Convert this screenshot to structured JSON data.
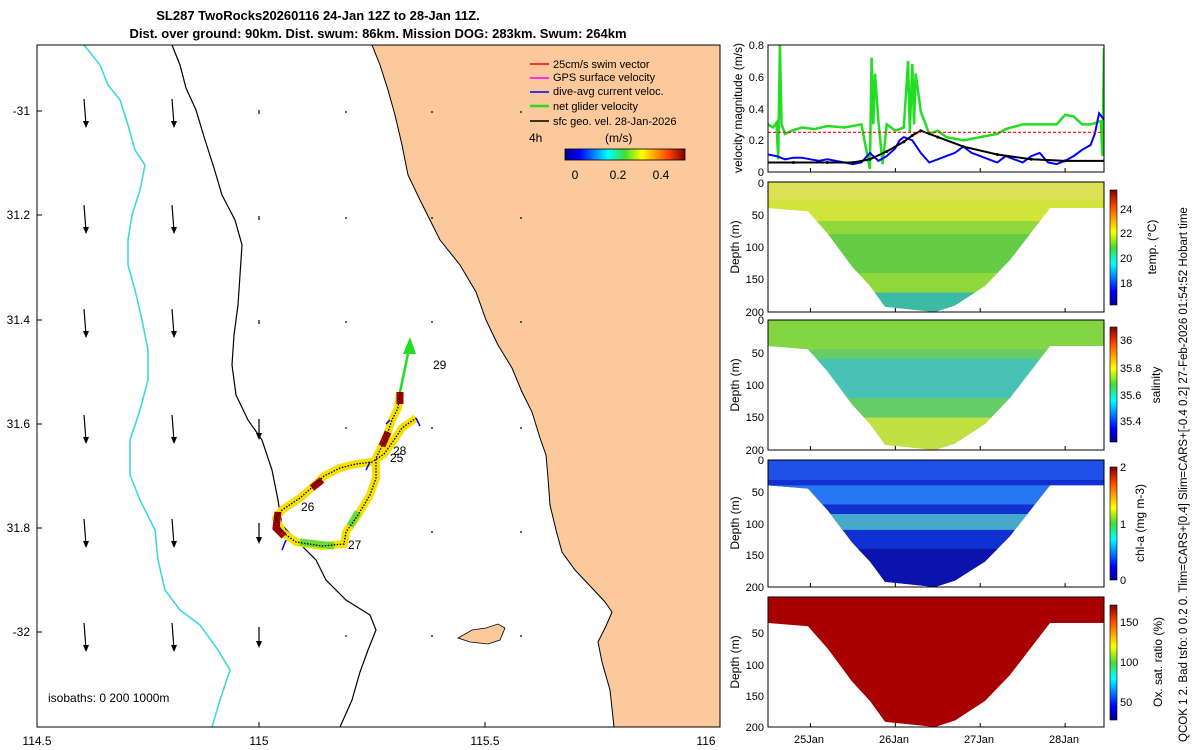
{
  "header": {
    "title_line1": "SL287 TwoRocks20260116 24-Jan 12Z to 28-Jan 11Z.",
    "title_line2": "Dist. over ground: 90km. Dist. swum: 86km. Mission DOG: 283km. Swum: 264km"
  },
  "side_text": "QCOK 1  2. Bad tsfo: 0  0.2  0. Tlim=CARS+[0.4] Slim=CARS+[-0.4 0.2] 27-Feb-2026 01:54:52 Hobart time",
  "colors": {
    "land": "#fbc99b",
    "isobath_0": "#000000",
    "isobath_200": "#000000",
    "isobath_1000": "#40d8e0",
    "swim_vector": "#ff0000",
    "gps_velocity": "#ff00ff",
    "dive_current": "#0000ff",
    "net_glider": "#22dd22",
    "sfc_geo": "#000000"
  },
  "map": {
    "lon_ticks": [
      "114.5",
      "115",
      "115.5",
      "116"
    ],
    "lat_ticks": [
      "-31",
      "31.2",
      "31.4",
      "31.6",
      "31.8",
      "-32"
    ],
    "legend": {
      "items": [
        {
          "label": "25cm/s swim vector",
          "color_key": "swim_vector"
        },
        {
          "label": "GPS surface velocity",
          "color_key": "gps_velocity"
        },
        {
          "label": "dive-avg current veloc.",
          "color_key": "dive_current"
        },
        {
          "label": "net glider velocity",
          "color_key": "net_glider"
        },
        {
          "label": "sfc geo. vel. 28-Jan-2026",
          "color_key": "sfc_geo"
        }
      ],
      "interval_label": "4h",
      "units": "(m/s)",
      "colorbar_ticks": [
        "0",
        "0.2",
        "0.4"
      ]
    },
    "day_labels": [
      "25",
      "26",
      "27",
      "28",
      "29"
    ],
    "isobaths_label": "isobaths: 0   200  1000m"
  },
  "chart_data": [
    {
      "type": "line",
      "panel": "velocity",
      "ylabel": "velocity magnitude (m/s)",
      "ylim": [
        0,
        0.8
      ],
      "yticks": [
        "0",
        "0.2",
        "0.4",
        "0.6",
        "0.8"
      ],
      "x_days": [
        24.5,
        28.458
      ],
      "series": [
        {
          "name": "net glider velocity",
          "color_key": "net_glider",
          "x": [
            24.5,
            24.56,
            24.6,
            24.62,
            24.64,
            24.66,
            24.7,
            24.78,
            24.9,
            25.05,
            25.2,
            25.4,
            25.6,
            25.7,
            25.72,
            25.74,
            25.76,
            25.8,
            25.85,
            25.9,
            26.0,
            26.1,
            26.15,
            26.17,
            26.2,
            26.22,
            26.24,
            26.3,
            26.4,
            26.5,
            26.6,
            26.8,
            27.0,
            27.2,
            27.3,
            27.5,
            27.7,
            27.9,
            28.0,
            28.1,
            28.2,
            28.3,
            28.42,
            28.44,
            28.458
          ],
          "values": [
            0.3,
            0.28,
            0.31,
            0.08,
            0.8,
            0.3,
            0.24,
            0.26,
            0.28,
            0.27,
            0.29,
            0.28,
            0.3,
            0.02,
            0.72,
            0.3,
            0.62,
            0.32,
            0.05,
            0.3,
            0.26,
            0.28,
            0.7,
            0.25,
            0.68,
            0.3,
            0.62,
            0.38,
            0.24,
            0.26,
            0.22,
            0.2,
            0.22,
            0.24,
            0.27,
            0.3,
            0.3,
            0.3,
            0.36,
            0.35,
            0.3,
            0.3,
            0.32,
            0.1,
            0.78
          ]
        },
        {
          "name": "dive-avg current veloc.",
          "color_key": "dive_current",
          "x": [
            24.5,
            24.6,
            24.7,
            24.8,
            24.9,
            25.0,
            25.1,
            25.2,
            25.3,
            25.4,
            25.5,
            25.6,
            25.7,
            25.8,
            25.9,
            26.0,
            26.05,
            26.1,
            26.2,
            26.3,
            26.4,
            26.5,
            26.6,
            26.7,
            26.8,
            26.9,
            27.0,
            27.1,
            27.2,
            27.3,
            27.4,
            27.5,
            27.6,
            27.7,
            27.8,
            27.9,
            28.0,
            28.1,
            28.2,
            28.3,
            28.35,
            28.4,
            28.458
          ],
          "values": [
            0.11,
            0.1,
            0.08,
            0.09,
            0.09,
            0.08,
            0.07,
            0.08,
            0.07,
            0.06,
            0.05,
            0.06,
            0.12,
            0.07,
            0.1,
            0.15,
            0.2,
            0.22,
            0.2,
            0.12,
            0.06,
            0.08,
            0.1,
            0.12,
            0.16,
            0.12,
            0.1,
            0.08,
            0.06,
            0.1,
            0.08,
            0.06,
            0.1,
            0.12,
            0.06,
            0.05,
            0.07,
            0.1,
            0.14,
            0.17,
            0.24,
            0.37,
            0.33
          ]
        },
        {
          "name": "sfc geo. vel.",
          "color_key": "sfc_geo",
          "x": [
            24.5,
            24.8,
            25.2,
            25.5,
            25.7,
            25.9,
            26.1,
            26.2,
            26.3,
            26.5,
            26.8,
            27.2,
            27.6,
            28.0,
            28.458
          ],
          "values": [
            0.06,
            0.06,
            0.06,
            0.06,
            0.08,
            0.13,
            0.19,
            0.23,
            0.26,
            0.22,
            0.16,
            0.11,
            0.08,
            0.07,
            0.07
          ]
        },
        {
          "name": "swim vector",
          "color_key": "swim_vector",
          "x": [
            24.5,
            28.458
          ],
          "values": [
            0.25,
            0.25
          ]
        }
      ]
    },
    {
      "type": "heatmap",
      "panel": "temperature",
      "ylabel": "Depth (m)",
      "ylim": [
        200,
        0
      ],
      "yticks": [
        "0",
        "50",
        "100",
        "150",
        "200"
      ],
      "colorbar_label": "temp. (°C)",
      "colorbar_range": [
        16.5,
        25.5
      ],
      "colorbar_ticks": [
        "18",
        "20",
        "22",
        "24"
      ]
    },
    {
      "type": "heatmap",
      "panel": "salinity",
      "ylabel": "Depth (m)",
      "ylim": [
        200,
        0
      ],
      "yticks": [
        "0",
        "50",
        "100",
        "150",
        "200"
      ],
      "colorbar_label": "salinity",
      "colorbar_range": [
        35.25,
        36.1
      ],
      "colorbar_ticks": [
        "35.4",
        "35.6",
        "35.8",
        "36"
      ]
    },
    {
      "type": "heatmap",
      "panel": "chlorophyll",
      "ylabel": "Depth (m)",
      "ylim": [
        200,
        0
      ],
      "yticks": [
        "0",
        "50",
        "100",
        "150",
        "200"
      ],
      "colorbar_label": "chl-a (mg m-3)",
      "colorbar_range": [
        0,
        2
      ],
      "colorbar_ticks": [
        "0",
        "1",
        "2"
      ]
    },
    {
      "type": "heatmap",
      "panel": "oxygen",
      "ylabel": "Depth (m)",
      "ylim": [
        200,
        0
      ],
      "yticks": [
        "50",
        "100",
        "150",
        "200"
      ],
      "colorbar_label": "Ox. sat. ratio (%)",
      "colorbar_range": [
        20,
        175
      ],
      "colorbar_ticks": [
        "50",
        "100",
        "150"
      ],
      "xticks": [
        "25Jan",
        "26Jan",
        "27Jan",
        "28Jan"
      ]
    }
  ]
}
